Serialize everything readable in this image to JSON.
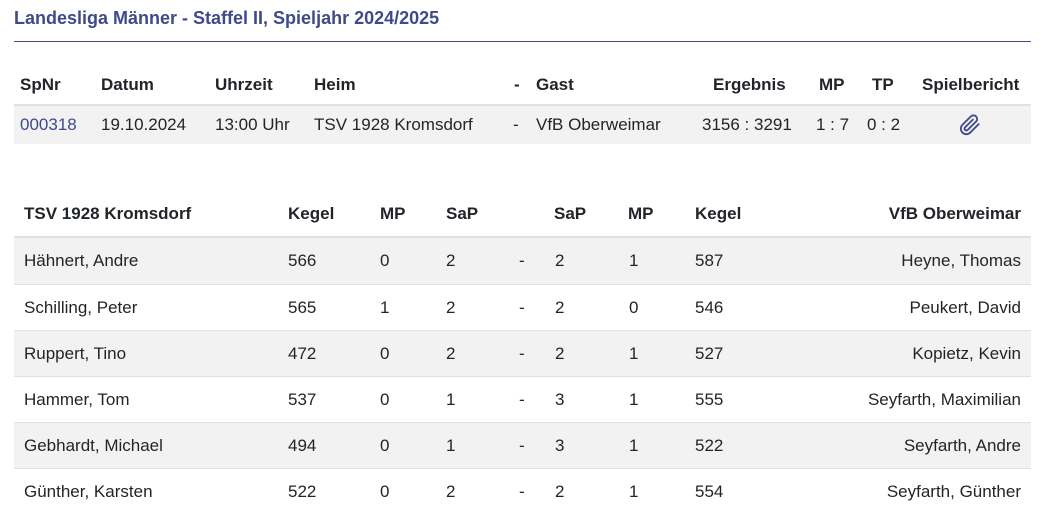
{
  "title": "Landesliga Männer - Staffel II, Spieljahr 2024/2025",
  "match": {
    "headers": {
      "spnr": "SpNr",
      "datum": "Datum",
      "uhrzeit": "Uhrzeit",
      "heim": "Heim",
      "dash": "-",
      "gast": "Gast",
      "ergebnis": "Ergebnis",
      "mp": "MP",
      "tp": "TP",
      "spielbericht": "Spielbericht"
    },
    "row": {
      "spnr": "000318",
      "datum": "19.10.2024",
      "uhrzeit": "13:00 Uhr",
      "heim": "TSV 1928 Kromsdorf",
      "dash": "-",
      "gast": "VfB Oberweimar",
      "ergebnis": "3156 : 3291",
      "mp": "1 : 7",
      "tp": "0 : 2",
      "report_icon": "paperclip-icon"
    }
  },
  "players": {
    "headers": {
      "home_team": "TSV 1928 Kromsdorf",
      "kegel_home": "Kegel",
      "mp_home": "MP",
      "sap_home": "SaP",
      "sap_away": "SaP",
      "mp_away": "MP",
      "kegel_away": "Kegel",
      "away_team": "VfB Oberweimar"
    },
    "rows": [
      {
        "home": "Hähnert, Andre",
        "kegel_h": "566",
        "mp_h": "0",
        "sap_h": "2",
        "dash": "-",
        "sap_a": "2",
        "mp_a": "1",
        "kegel_a": "587",
        "away": "Heyne, Thomas"
      },
      {
        "home": "Schilling, Peter",
        "kegel_h": "565",
        "mp_h": "1",
        "sap_h": "2",
        "dash": "-",
        "sap_a": "2",
        "mp_a": "0",
        "kegel_a": "546",
        "away": "Peukert, David"
      },
      {
        "home": "Ruppert, Tino",
        "kegel_h": "472",
        "mp_h": "0",
        "sap_h": "2",
        "dash": "-",
        "sap_a": "2",
        "mp_a": "1",
        "kegel_a": "527",
        "away": "Kopietz, Kevin"
      },
      {
        "home": "Hammer, Tom",
        "kegel_h": "537",
        "mp_h": "0",
        "sap_h": "1",
        "dash": "-",
        "sap_a": "3",
        "mp_a": "1",
        "kegel_a": "555",
        "away": "Seyfarth, Maximilian"
      },
      {
        "home": "Gebhardt, Michael",
        "kegel_h": "494",
        "mp_h": "0",
        "sap_h": "1",
        "dash": "-",
        "sap_a": "3",
        "mp_a": "1",
        "kegel_a": "522",
        "away": "Seyfarth, Andre"
      },
      {
        "home": "Günther, Karsten",
        "kegel_h": "522",
        "mp_h": "0",
        "sap_h": "2",
        "dash": "-",
        "sap_a": "2",
        "mp_a": "1",
        "kegel_a": "554",
        "away": "Seyfarth, Günther"
      }
    ]
  },
  "colors": {
    "accent": "#3f4a8a",
    "stripe": "#f2f2f2",
    "border": "#dee2e6",
    "text": "#212529"
  }
}
